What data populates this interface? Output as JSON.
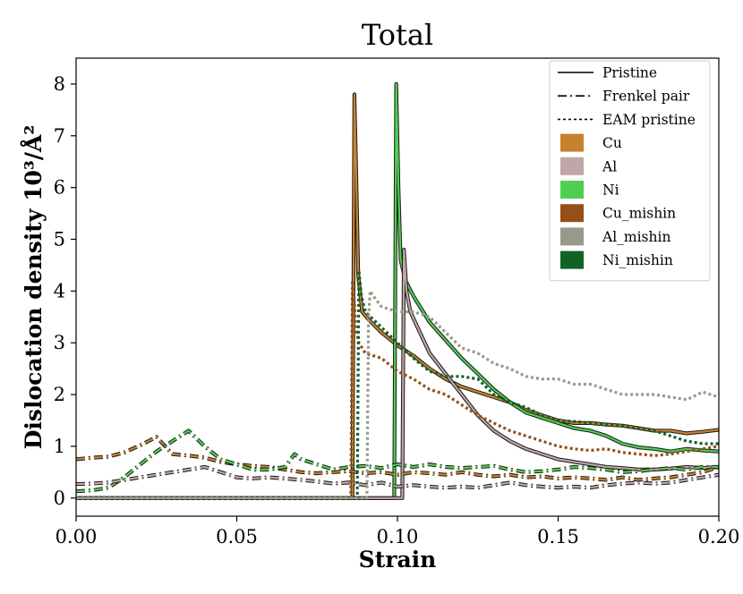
{
  "chart_data": {
    "type": "line",
    "title": "Total",
    "xlabel": "Strain",
    "ylabel": "Dislocation density 10³/Å²",
    "xlim": [
      0.0,
      0.2
    ],
    "ylim": [
      -0.35,
      8.5
    ],
    "xticks": [
      0.0,
      0.05,
      0.1,
      0.15,
      0.2
    ],
    "xtick_labels": [
      "0.00",
      "0.05",
      "0.10",
      "0.15",
      "0.20"
    ],
    "yticks": [
      0,
      1,
      2,
      3,
      4,
      5,
      6,
      7,
      8
    ],
    "ytick_labels": [
      "0",
      "1",
      "2",
      "3",
      "4",
      "5",
      "6",
      "7",
      "8"
    ],
    "legend_position": "top-right",
    "legend": {
      "styles": [
        {
          "label": "Pristine",
          "dash": "solid"
        },
        {
          "label": "Frenkel pair",
          "dash": "dashdot"
        },
        {
          "label": "EAM pristine",
          "dash": "dotted"
        }
      ],
      "materials": [
        {
          "label": "Cu",
          "color": "#c8822f"
        },
        {
          "label": "Al",
          "color": "#c0a6a8"
        },
        {
          "label": "Ni",
          "color": "#4fcf50"
        },
        {
          "label": "Cu_mishin",
          "color": "#954f17"
        },
        {
          "label": "Al_mishin",
          "color": "#989a89"
        },
        {
          "label": "Ni_mishin",
          "color": "#106325"
        }
      ]
    },
    "series": [
      {
        "name": "Cu pristine",
        "color": "#c8822f",
        "style": "solid",
        "outline": true,
        "x": [
          0.0,
          0.086,
          0.0866,
          0.0872,
          0.0878,
          0.089,
          0.091,
          0.095,
          0.1,
          0.105,
          0.11,
          0.115,
          0.12,
          0.125,
          0.13,
          0.135,
          0.14,
          0.145,
          0.15,
          0.155,
          0.16,
          0.165,
          0.17,
          0.175,
          0.18,
          0.185,
          0.19,
          0.195,
          0.2
        ],
        "y": [
          0.0,
          0.0,
          7.8,
          6.2,
          4.3,
          3.6,
          3.45,
          3.2,
          2.95,
          2.75,
          2.5,
          2.3,
          2.15,
          2.05,
          1.95,
          1.85,
          1.7,
          1.6,
          1.5,
          1.45,
          1.45,
          1.42,
          1.4,
          1.35,
          1.3,
          1.3,
          1.25,
          1.28,
          1.32
        ]
      },
      {
        "name": "Ni pristine",
        "color": "#4fcf50",
        "style": "solid",
        "outline": true,
        "x": [
          0.0,
          0.099,
          0.0996,
          0.1003,
          0.101,
          0.1025,
          0.105,
          0.11,
          0.115,
          0.12,
          0.125,
          0.13,
          0.135,
          0.14,
          0.145,
          0.15,
          0.155,
          0.16,
          0.165,
          0.17,
          0.175,
          0.18,
          0.185,
          0.19,
          0.195,
          0.2
        ],
        "y": [
          0.0,
          0.0,
          8.0,
          6.0,
          4.6,
          4.2,
          3.9,
          3.4,
          3.05,
          2.7,
          2.4,
          2.1,
          1.85,
          1.65,
          1.55,
          1.45,
          1.35,
          1.3,
          1.2,
          1.05,
          0.98,
          0.95,
          0.9,
          0.95,
          0.92,
          0.9
        ]
      },
      {
        "name": "Al pristine",
        "color": "#c0a6a8",
        "style": "solid",
        "outline": true,
        "x": [
          0.0,
          0.1015,
          0.102,
          0.1028,
          0.104,
          0.107,
          0.11,
          0.115,
          0.12,
          0.125,
          0.13,
          0.135,
          0.14,
          0.145,
          0.15,
          0.155,
          0.16,
          0.165,
          0.17,
          0.175,
          0.18,
          0.185,
          0.19,
          0.195,
          0.2
        ],
        "y": [
          0.0,
          0.0,
          4.8,
          4.0,
          3.6,
          3.2,
          2.8,
          2.4,
          2.0,
          1.6,
          1.3,
          1.1,
          0.95,
          0.85,
          0.75,
          0.7,
          0.65,
          0.6,
          0.58,
          0.55,
          0.55,
          0.57,
          0.6,
          0.58,
          0.6
        ]
      },
      {
        "name": "Cu Frenkel pair",
        "color": "#c8822f",
        "style": "dashdot",
        "outline": true,
        "x": [
          0.0,
          0.005,
          0.01,
          0.015,
          0.02,
          0.025,
          0.03,
          0.035,
          0.04,
          0.045,
          0.05,
          0.055,
          0.06,
          0.065,
          0.07,
          0.075,
          0.08,
          0.085,
          0.09,
          0.095,
          0.1,
          0.105,
          0.11,
          0.115,
          0.12,
          0.125,
          0.13,
          0.135,
          0.14,
          0.145,
          0.15,
          0.155,
          0.16,
          0.165,
          0.17,
          0.175,
          0.18,
          0.185,
          0.19,
          0.195,
          0.2
        ],
        "y": [
          0.75,
          0.78,
          0.8,
          0.88,
          1.02,
          1.18,
          0.85,
          0.82,
          0.78,
          0.7,
          0.65,
          0.62,
          0.6,
          0.55,
          0.5,
          0.48,
          0.5,
          0.52,
          0.48,
          0.5,
          0.45,
          0.5,
          0.48,
          0.45,
          0.5,
          0.45,
          0.42,
          0.45,
          0.4,
          0.42,
          0.38,
          0.4,
          0.38,
          0.35,
          0.4,
          0.35,
          0.38,
          0.4,
          0.45,
          0.5,
          0.6
        ]
      },
      {
        "name": "Ni Frenkel pair",
        "color": "#4fcf50",
        "style": "dashdot",
        "outline": true,
        "x": [
          0.0,
          0.005,
          0.01,
          0.015,
          0.02,
          0.025,
          0.03,
          0.035,
          0.04,
          0.045,
          0.05,
          0.055,
          0.06,
          0.065,
          0.068,
          0.07,
          0.075,
          0.08,
          0.085,
          0.09,
          0.095,
          0.1,
          0.105,
          0.11,
          0.115,
          0.12,
          0.125,
          0.13,
          0.135,
          0.14,
          0.145,
          0.15,
          0.155,
          0.16,
          0.165,
          0.17,
          0.175,
          0.18,
          0.185,
          0.19,
          0.195,
          0.2
        ],
        "y": [
          0.13,
          0.15,
          0.2,
          0.4,
          0.65,
          0.9,
          1.1,
          1.3,
          1.0,
          0.75,
          0.65,
          0.55,
          0.55,
          0.6,
          0.85,
          0.75,
          0.65,
          0.55,
          0.6,
          0.62,
          0.58,
          0.65,
          0.6,
          0.65,
          0.6,
          0.58,
          0.6,
          0.62,
          0.55,
          0.5,
          0.52,
          0.55,
          0.6,
          0.58,
          0.55,
          0.5,
          0.52,
          0.55,
          0.58,
          0.55,
          0.6,
          0.6
        ]
      },
      {
        "name": "Al Frenkel pair",
        "color": "#c0a6a8",
        "style": "dashdot",
        "outline": true,
        "x": [
          0.0,
          0.005,
          0.01,
          0.015,
          0.02,
          0.025,
          0.03,
          0.035,
          0.04,
          0.045,
          0.05,
          0.055,
          0.06,
          0.065,
          0.07,
          0.075,
          0.08,
          0.085,
          0.09,
          0.095,
          0.1,
          0.105,
          0.11,
          0.115,
          0.12,
          0.125,
          0.13,
          0.135,
          0.14,
          0.145,
          0.15,
          0.155,
          0.16,
          0.165,
          0.17,
          0.175,
          0.18,
          0.185,
          0.19,
          0.195,
          0.2
        ],
        "y": [
          0.27,
          0.28,
          0.3,
          0.35,
          0.4,
          0.45,
          0.5,
          0.55,
          0.6,
          0.5,
          0.4,
          0.38,
          0.4,
          0.38,
          0.35,
          0.32,
          0.28,
          0.3,
          0.25,
          0.3,
          0.22,
          0.25,
          0.22,
          0.2,
          0.22,
          0.2,
          0.25,
          0.3,
          0.25,
          0.22,
          0.2,
          0.22,
          0.2,
          0.25,
          0.28,
          0.3,
          0.28,
          0.3,
          0.35,
          0.4,
          0.45
        ]
      },
      {
        "name": "Cu_mishin EAM pristine",
        "color": "#954f17",
        "style": "dotted",
        "outline": false,
        "x": [
          0.0,
          0.0855,
          0.086,
          0.0866,
          0.087,
          0.088,
          0.09,
          0.095,
          0.1,
          0.105,
          0.11,
          0.115,
          0.12,
          0.125,
          0.13,
          0.135,
          0.14,
          0.145,
          0.15,
          0.155,
          0.16,
          0.165,
          0.17,
          0.175,
          0.18,
          0.185,
          0.19,
          0.195,
          0.2
        ],
        "y": [
          0.0,
          0.0,
          4.2,
          3.8,
          3.3,
          3.0,
          2.8,
          2.7,
          2.45,
          2.3,
          2.1,
          2.0,
          1.8,
          1.6,
          1.45,
          1.3,
          1.2,
          1.1,
          1.0,
          0.95,
          0.92,
          0.95,
          0.88,
          0.85,
          0.82,
          0.85,
          0.9,
          0.95,
          1.0
        ]
      },
      {
        "name": "Ni_mishin EAM pristine",
        "color": "#106325",
        "style": "dotted",
        "outline": false,
        "x": [
          0.0,
          0.0875,
          0.088,
          0.0888,
          0.09,
          0.095,
          0.1,
          0.105,
          0.11,
          0.115,
          0.12,
          0.125,
          0.13,
          0.135,
          0.14,
          0.145,
          0.15,
          0.155,
          0.16,
          0.165,
          0.17,
          0.175,
          0.18,
          0.185,
          0.19,
          0.195,
          0.2
        ],
        "y": [
          0.0,
          0.0,
          4.4,
          3.9,
          3.6,
          3.3,
          3.0,
          2.7,
          2.45,
          2.35,
          2.35,
          2.3,
          2.0,
          1.85,
          1.75,
          1.6,
          1.5,
          1.48,
          1.45,
          1.42,
          1.4,
          1.35,
          1.3,
          1.2,
          1.1,
          1.05,
          1.05
        ]
      },
      {
        "name": "Al_mishin EAM pristine",
        "color": "#989a89",
        "style": "dotted",
        "outline": false,
        "x": [
          0.0,
          0.0905,
          0.091,
          0.0915,
          0.0925,
          0.095,
          0.1,
          0.105,
          0.11,
          0.115,
          0.12,
          0.125,
          0.13,
          0.135,
          0.14,
          0.145,
          0.15,
          0.155,
          0.16,
          0.165,
          0.17,
          0.175,
          0.18,
          0.185,
          0.19,
          0.195,
          0.2
        ],
        "y": [
          0.0,
          0.0,
          3.5,
          4.0,
          3.9,
          3.7,
          3.6,
          3.6,
          3.5,
          3.2,
          2.9,
          2.8,
          2.6,
          2.5,
          2.35,
          2.3,
          2.3,
          2.2,
          2.2,
          2.1,
          2.0,
          2.0,
          2.0,
          1.95,
          1.9,
          2.05,
          1.95
        ]
      }
    ]
  }
}
